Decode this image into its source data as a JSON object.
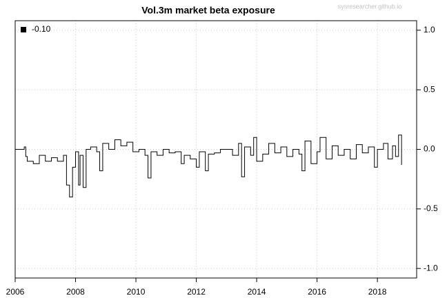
{
  "chart_data": {
    "type": "line",
    "title": "Vol.3m market beta exposure",
    "watermark": "sysresearcher.github.io",
    "x": [
      2006.0,
      2006.3,
      2006.35,
      2006.4,
      2006.6,
      2006.8,
      2007.0,
      2007.2,
      2007.4,
      2007.6,
      2007.7,
      2007.8,
      2007.9,
      2008.0,
      2008.1,
      2008.15,
      2008.25,
      2008.35,
      2008.5,
      2008.7,
      2008.8,
      2008.9,
      2009.1,
      2009.3,
      2009.5,
      2009.7,
      2009.9,
      2010.1,
      2010.3,
      2010.4,
      2010.5,
      2010.7,
      2010.9,
      2011.1,
      2011.3,
      2011.5,
      2011.6,
      2011.8,
      2012.0,
      2012.1,
      2012.3,
      2012.4,
      2012.6,
      2012.8,
      2013.0,
      2013.2,
      2013.4,
      2013.5,
      2013.6,
      2013.8,
      2013.9,
      2014.0,
      2014.2,
      2014.4,
      2014.6,
      2014.8,
      2015.0,
      2015.2,
      2015.4,
      2015.5,
      2015.6,
      2015.8,
      2016.0,
      2016.1,
      2016.3,
      2016.5,
      2016.7,
      2016.9,
      2017.1,
      2017.3,
      2017.5,
      2017.7,
      2017.9,
      2018.0,
      2018.2,
      2018.35,
      2018.5,
      2018.6,
      2018.7,
      2018.8
    ],
    "series": [
      {
        "name": "-0.10",
        "color": "#000000",
        "values": [
          0.0,
          0.02,
          -0.06,
          -0.1,
          -0.12,
          -0.05,
          -0.1,
          -0.07,
          -0.1,
          -0.05,
          -0.3,
          -0.4,
          -0.15,
          -0.02,
          -0.3,
          -0.05,
          -0.32,
          0.0,
          0.02,
          -0.02,
          -0.18,
          0.05,
          0.0,
          0.08,
          0.03,
          0.06,
          -0.02,
          0.0,
          -0.05,
          -0.24,
          -0.02,
          -0.05,
          0.0,
          -0.03,
          -0.02,
          -0.12,
          -0.05,
          -0.08,
          -0.15,
          -0.02,
          -0.18,
          -0.04,
          -0.03,
          0.0,
          0.0,
          -0.05,
          0.05,
          -0.23,
          0.02,
          -0.05,
          0.1,
          -0.1,
          -0.04,
          0.05,
          -0.03,
          0.02,
          -0.06,
          0.0,
          -0.04,
          -0.18,
          0.07,
          -0.12,
          -0.02,
          0.1,
          -0.08,
          0.03,
          -0.05,
          0.0,
          -0.08,
          0.04,
          -0.03,
          0.02,
          -0.15,
          0.0,
          0.05,
          -0.08,
          0.03,
          -0.06,
          0.12,
          -0.13
        ]
      }
    ],
    "xlim": [
      2006,
      2019.3
    ],
    "xticks": [
      2006,
      2008,
      2010,
      2012,
      2014,
      2016,
      2018
    ],
    "ylim": [
      -1.08,
      1.08
    ],
    "yticks": [
      {
        "value": 1,
        "label": "1.0"
      },
      {
        "value": 0.5,
        "label": "0.5"
      },
      {
        "value": 0,
        "label": "0.0"
      },
      {
        "value": -0.5,
        "label": "-0.5"
      },
      {
        "value": -1,
        "label": "-1.0"
      }
    ],
    "y_axis_side": "right",
    "grid": true,
    "step": true,
    "legend": "top-left"
  }
}
